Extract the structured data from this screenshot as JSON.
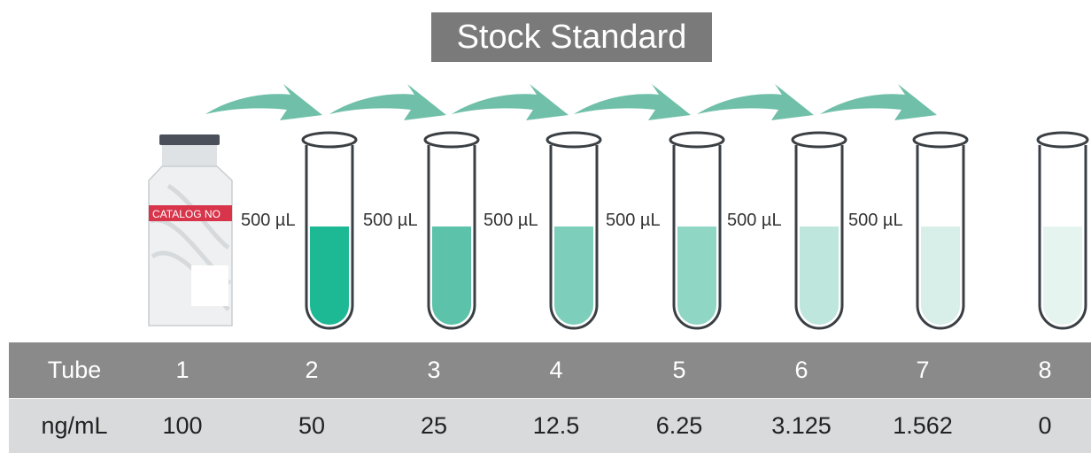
{
  "title": "Stock Standard",
  "vial": {
    "label": "CATALOG NO"
  },
  "transfer_volumes": [
    "500 µL",
    "500 µL",
    "500 µL",
    "500 µL",
    "500 µL",
    "500 µL"
  ],
  "table": {
    "row_headers": [
      "Tube",
      "ng/mL"
    ],
    "tubes": [
      "1",
      "2",
      "3",
      "4",
      "5",
      "6",
      "7",
      "8"
    ],
    "concentrations": [
      "100",
      "50",
      "25",
      "12.5",
      "6.25",
      "3.125",
      "1.562",
      "0"
    ]
  },
  "colors": {
    "title_bg": "#7a7a7a",
    "arrow": "#6fbfa9",
    "header_row_bg": "#8a8a8a",
    "value_row_bg": "#d9dadb",
    "tube_fills": [
      "#1db894",
      "#5cc3aa",
      "#7dcfbb",
      "#8fd6c5",
      "#bfe6dd",
      "#d8efe9",
      "#e6f4f0"
    ]
  }
}
